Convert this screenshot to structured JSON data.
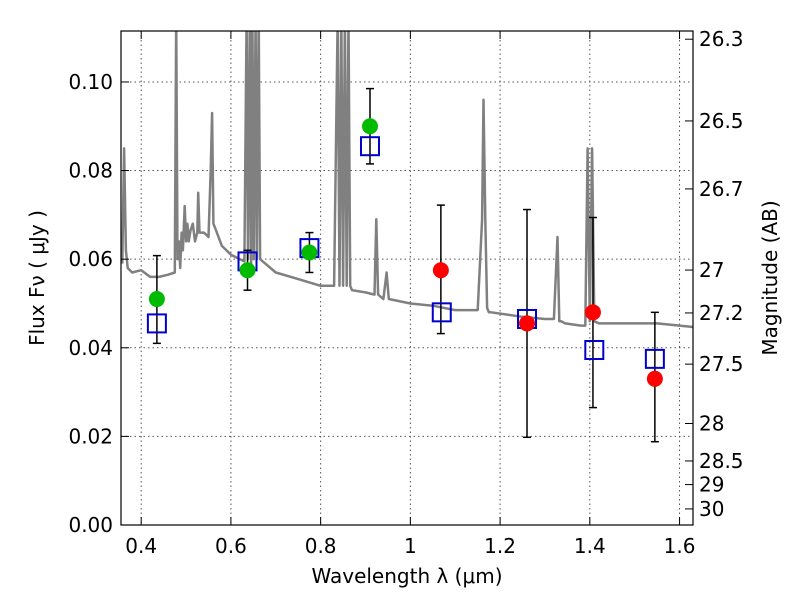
{
  "chart_data": {
    "type": "scatter",
    "title": "",
    "xlabel": "Wavelength  λ (μm)",
    "ylabel": "Flux  Fν  ( μJy )",
    "ylabel_right": "Magnitude (AB)",
    "xlim": [
      0.355,
      1.63
    ],
    "ylim": [
      0.0,
      0.1115
    ],
    "grid": true,
    "x_ticks": [
      0.4,
      0.6,
      0.8,
      1.0,
      1.2,
      1.4,
      1.6
    ],
    "x_tick_labels": [
      "0.4",
      "0.6",
      "0.8",
      "1",
      "1.2",
      "1.4",
      "1.6"
    ],
    "y_ticks": [
      0.0,
      0.02,
      0.04,
      0.06,
      0.08,
      0.1
    ],
    "y_tick_labels": [
      "0.00",
      "0.02",
      "0.04",
      "0.06",
      "0.08",
      "0.10"
    ],
    "right_ticks": [
      {
        "mag": 26.3,
        "label": "26.3"
      },
      {
        "mag": 26.5,
        "label": "26.5"
      },
      {
        "mag": 26.7,
        "label": "26.7"
      },
      {
        "mag": 27.0,
        "label": "27"
      },
      {
        "mag": 27.2,
        "label": "27.2"
      },
      {
        "mag": 27.5,
        "label": "27.5"
      },
      {
        "mag": 28.0,
        "label": "28"
      },
      {
        "mag": 28.5,
        "label": "28.5"
      },
      {
        "mag": 29.0,
        "label": "29"
      },
      {
        "mag": 30.0,
        "label": "30"
      }
    ],
    "series": [
      {
        "kind": "model-spectrum",
        "color": "#808080",
        "x": [
          0.358,
          0.362,
          0.366,
          0.37,
          0.38,
          0.4,
          0.42,
          0.44,
          0.46,
          0.475,
          0.478,
          0.481,
          0.484,
          0.487,
          0.49,
          0.493,
          0.497,
          0.5,
          0.503,
          0.506,
          0.51,
          0.515,
          0.52,
          0.525,
          0.527,
          0.53,
          0.54,
          0.55,
          0.555,
          0.558,
          0.561,
          0.565,
          0.58,
          0.6,
          0.62,
          0.63,
          0.635,
          0.638,
          0.642,
          0.645,
          0.648,
          0.651,
          0.655,
          0.658,
          0.662,
          0.665,
          0.7,
          0.75,
          0.8,
          0.83,
          0.838,
          0.842,
          0.846,
          0.85,
          0.854,
          0.858,
          0.862,
          0.866,
          0.87,
          0.9,
          0.92,
          0.924,
          0.928,
          0.94,
          0.947,
          0.952,
          1.0,
          1.05,
          1.1,
          1.15,
          1.16,
          1.163,
          1.167,
          1.171,
          1.175,
          1.18,
          1.25,
          1.3,
          1.32,
          1.328,
          1.332,
          1.336,
          1.345,
          1.38,
          1.39,
          1.395,
          1.4,
          1.405,
          1.41,
          1.42,
          1.45,
          1.5,
          1.55,
          1.6,
          1.63
        ],
        "y": [
          0.059,
          0.085,
          0.062,
          0.058,
          0.057,
          0.0575,
          0.056,
          0.056,
          0.0565,
          0.057,
          0.115,
          0.06,
          0.064,
          0.058,
          0.066,
          0.062,
          0.072,
          0.064,
          0.068,
          0.064,
          0.0665,
          0.068,
          0.064,
          0.066,
          0.075,
          0.066,
          0.066,
          0.065,
          0.08,
          0.093,
          0.068,
          0.067,
          0.063,
          0.061,
          0.06,
          0.0595,
          0.115,
          0.06,
          0.115,
          0.058,
          0.115,
          0.06,
          0.115,
          0.06,
          0.115,
          0.06,
          0.057,
          0.0555,
          0.054,
          0.054,
          0.115,
          0.054,
          0.115,
          0.054,
          0.115,
          0.054,
          0.115,
          0.054,
          0.053,
          0.0525,
          0.052,
          0.069,
          0.052,
          0.051,
          0.057,
          0.051,
          0.05,
          0.0495,
          0.0485,
          0.0485,
          0.069,
          0.096,
          0.069,
          0.049,
          0.048,
          0.048,
          0.047,
          0.0465,
          0.0465,
          0.065,
          0.046,
          0.046,
          0.0455,
          0.045,
          0.045,
          0.085,
          0.046,
          0.085,
          0.046,
          0.0455,
          0.0455,
          0.0455,
          0.0455,
          0.045,
          0.0447
        ]
      },
      {
        "kind": "model-photometry",
        "marker": "open-square",
        "color": "#0000cc",
        "x": [
          0.435,
          0.637,
          0.775,
          0.91,
          1.07,
          1.26,
          1.41,
          1.545
        ],
        "y": [
          0.0455,
          0.0595,
          0.0625,
          0.0855,
          0.048,
          0.0465,
          0.0395,
          0.0375
        ]
      },
      {
        "kind": "detections",
        "marker": "filled-circle",
        "color": "#00bb00",
        "x": [
          0.435,
          0.637,
          0.775,
          0.91
        ],
        "y": [
          0.051,
          0.0575,
          0.0615,
          0.09
        ],
        "yerr_low": [
          0.041,
          0.053,
          0.057,
          0.0815
        ],
        "yerr_high": [
          0.0608,
          0.062,
          0.066,
          0.0985
        ]
      },
      {
        "kind": "low-significance",
        "marker": "filled-circle",
        "color": "#ff0000",
        "x": [
          1.068,
          1.26,
          1.407,
          1.545
        ],
        "y": [
          0.0575,
          0.0455,
          0.048,
          0.033
        ],
        "yerr_low": [
          0.0432,
          0.0198,
          0.0265,
          0.0188
        ],
        "yerr_high": [
          0.0722,
          0.0712,
          0.0694,
          0.048
        ]
      }
    ]
  }
}
